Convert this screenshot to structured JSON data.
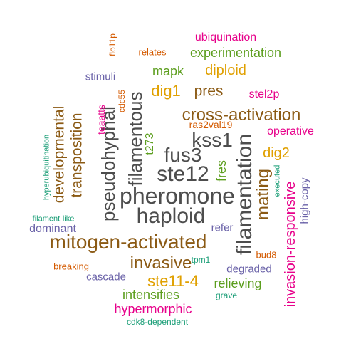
{
  "colors": {
    "charcoal": "#4d4d4d",
    "brown": "#8b5a14",
    "gold": "#e0a000",
    "green": "#5c9e1e",
    "magenta": "#e7008a",
    "orange": "#d45a00",
    "purple": "#6a62a8",
    "teal": "#1b9e77"
  },
  "words": [
    {
      "text": "pheromone",
      "color": "charcoal"
    },
    {
      "text": "mitogen-activated",
      "color": "brown"
    },
    {
      "text": "filamentation",
      "color": "charcoal"
    },
    {
      "text": "haploid",
      "color": "charcoal"
    },
    {
      "text": "ste12",
      "color": "charcoal"
    },
    {
      "text": "fus3",
      "color": "charcoal"
    },
    {
      "text": "kss1",
      "color": "charcoal"
    },
    {
      "text": "filamentous",
      "color": "charcoal"
    },
    {
      "text": "pseudohyphal",
      "color": "charcoal"
    },
    {
      "text": "cross-activation",
      "color": "brown"
    },
    {
      "text": "invasive",
      "color": "brown"
    },
    {
      "text": "mating",
      "color": "brown"
    },
    {
      "text": "developmental",
      "color": "brown"
    },
    {
      "text": "transposition",
      "color": "brown"
    },
    {
      "text": "invasion-responsive",
      "color": "magenta"
    },
    {
      "text": "ste11-4",
      "color": "gold"
    },
    {
      "text": "dig1",
      "color": "gold"
    },
    {
      "text": "pres",
      "color": "brown"
    },
    {
      "text": "dig2",
      "color": "gold"
    },
    {
      "text": "diploid",
      "color": "gold"
    },
    {
      "text": "experimentation",
      "color": "green"
    },
    {
      "text": "mapk",
      "color": "green"
    },
    {
      "text": "fres",
      "color": "green"
    },
    {
      "text": "relieving",
      "color": "green"
    },
    {
      "text": "intensifies",
      "color": "green"
    },
    {
      "text": "hypermorphic",
      "color": "magenta"
    },
    {
      "text": "ubiquination",
      "color": "magenta"
    },
    {
      "text": "operative",
      "color": "magenta"
    },
    {
      "text": "stel2p",
      "color": "magenta"
    },
    {
      "text": "t273",
      "color": "green"
    },
    {
      "text": "dominant",
      "color": "purple"
    },
    {
      "text": "high-copy",
      "color": "purple"
    },
    {
      "text": "degraded",
      "color": "purple"
    },
    {
      "text": "cascade",
      "color": "purple"
    },
    {
      "text": "stimuli",
      "color": "purple"
    },
    {
      "text": "refer",
      "color": "purple"
    },
    {
      "text": "teaatts",
      "color": "magenta"
    },
    {
      "text": "ras2val19",
      "color": "orange"
    },
    {
      "text": "relates",
      "color": "orange"
    },
    {
      "text": "breaking",
      "color": "orange"
    },
    {
      "text": "bud8",
      "color": "orange"
    },
    {
      "text": "flo11p",
      "color": "orange"
    },
    {
      "text": "cdc55",
      "color": "orange"
    },
    {
      "text": "hyperubiquitination",
      "color": "teal"
    },
    {
      "text": "filament-like",
      "color": "teal"
    },
    {
      "text": "executed",
      "color": "teal"
    },
    {
      "text": "tpm1",
      "color": "teal"
    },
    {
      "text": "grave",
      "color": "teal"
    },
    {
      "text": "cdk8-dependent",
      "color": "teal"
    }
  ]
}
